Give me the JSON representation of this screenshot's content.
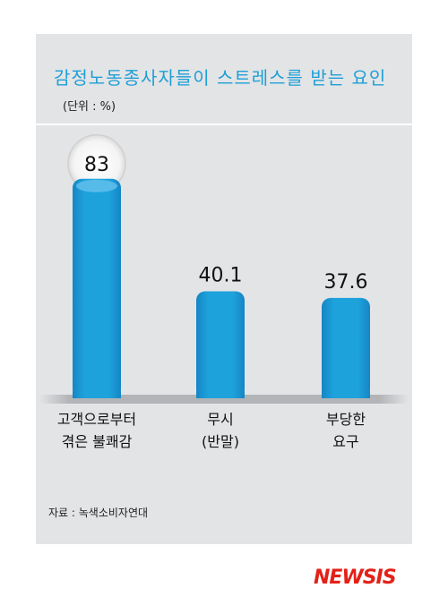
{
  "chart_data": {
    "type": "bar",
    "title": "감정노동종사자들이 스트레스를 받는 요인",
    "unit": "(단위 : %)",
    "categories": [
      [
        "고객으로부터",
        "겪은 불쾌감"
      ],
      [
        "무시",
        "(반말)"
      ],
      [
        "부당한",
        "요구"
      ]
    ],
    "values": [
      83,
      40.1,
      37.6
    ],
    "value_labels": [
      "83",
      "40.1",
      "37.6"
    ],
    "highlight_index": 0,
    "ylim": [
      0,
      100
    ],
    "bar_color": "#1a9ad6",
    "bar_color_light": "#62c0ec",
    "grid": false,
    "source": "자료 : 녹색소비자연대"
  },
  "logo": {
    "text": "NEWSIS",
    "color": "#e32119"
  }
}
